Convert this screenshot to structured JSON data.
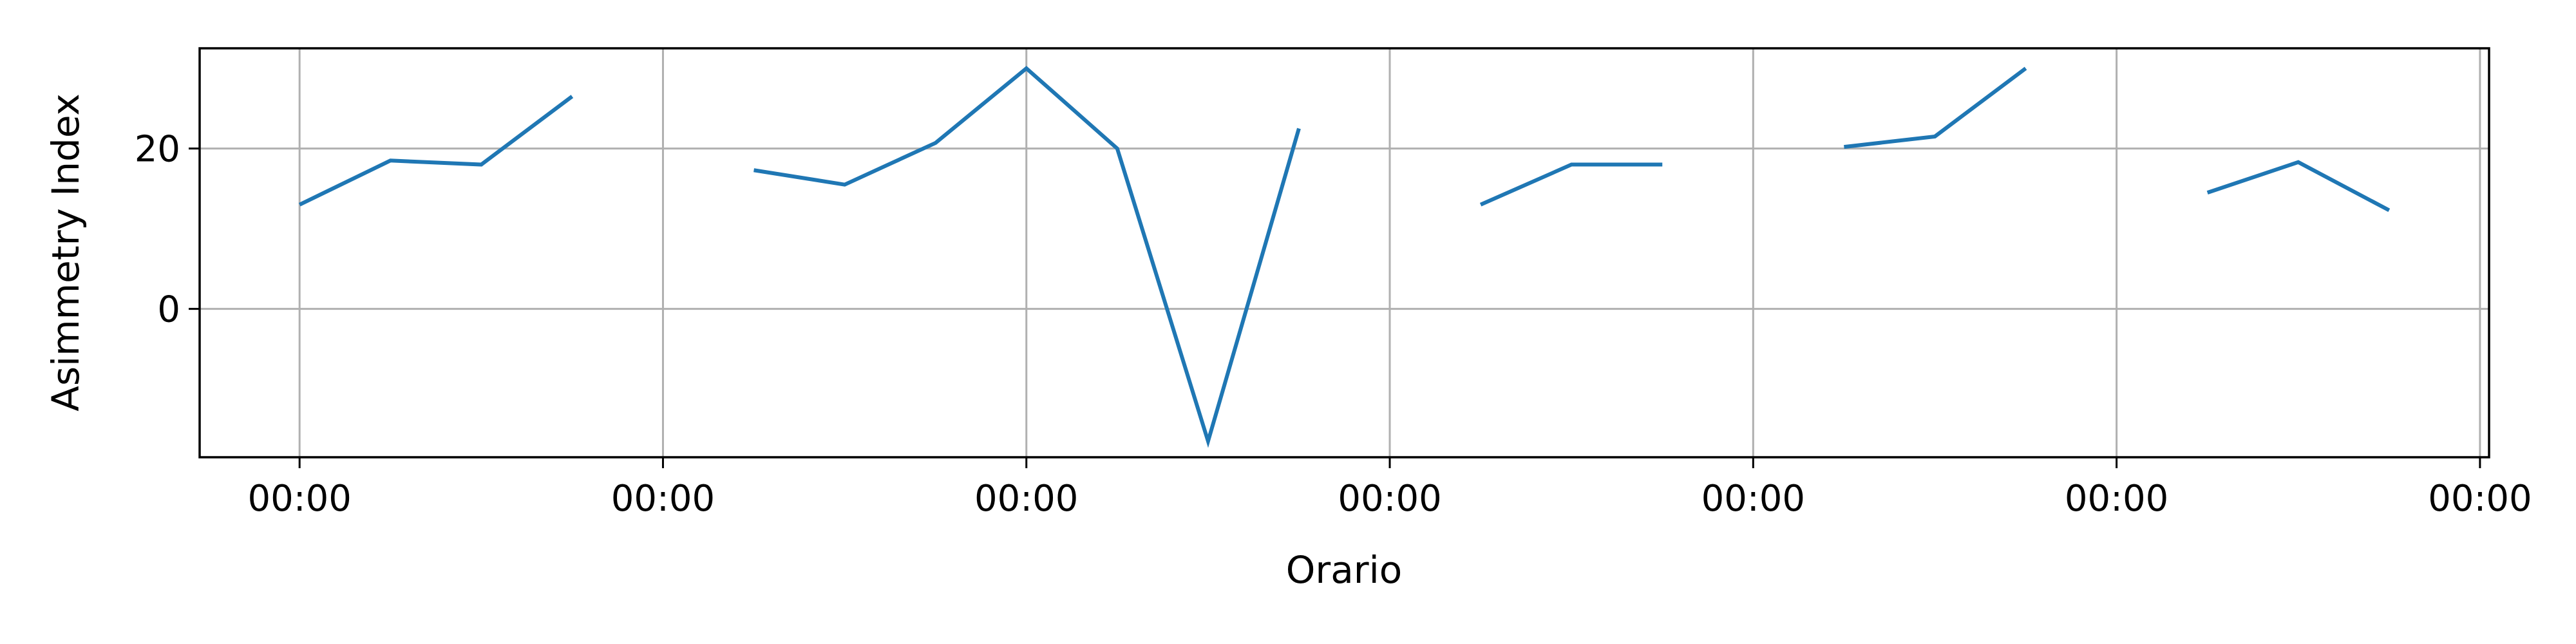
{
  "chart_data": {
    "type": "line",
    "title": "",
    "xlabel": "Orario",
    "ylabel": "Asimmetry Index",
    "xlim": [
      -1.1,
      24.1
    ],
    "ylim": [
      -18.5,
      32.5
    ],
    "yticks": [
      0,
      20
    ],
    "xticks": [
      {
        "pos": 0,
        "label": "00:00"
      },
      {
        "pos": 4,
        "label": "00:00"
      },
      {
        "pos": 8,
        "label": "00:00"
      },
      {
        "pos": 12,
        "label": "00:00"
      },
      {
        "pos": 16,
        "label": "00:00"
      },
      {
        "pos": 20,
        "label": "00:00"
      },
      {
        "pos": 24,
        "label": "00:00"
      }
    ],
    "grid": true,
    "line_color": "#1f77b4",
    "series": [
      {
        "x": [
          0,
          1,
          2,
          3,
          5,
          6,
          7,
          8,
          9,
          10,
          11,
          13,
          14,
          15,
          17,
          18,
          19,
          21,
          22,
          23
        ],
        "y": [
          13.0,
          18.5,
          18.0,
          26.5,
          17.3,
          15.5,
          20.7,
          30.0,
          20.0,
          -16.5,
          22.5,
          13.0,
          18.0,
          18.0,
          20.2,
          21.5,
          30.0,
          14.5,
          18.3,
          12.3
        ]
      }
    ]
  }
}
